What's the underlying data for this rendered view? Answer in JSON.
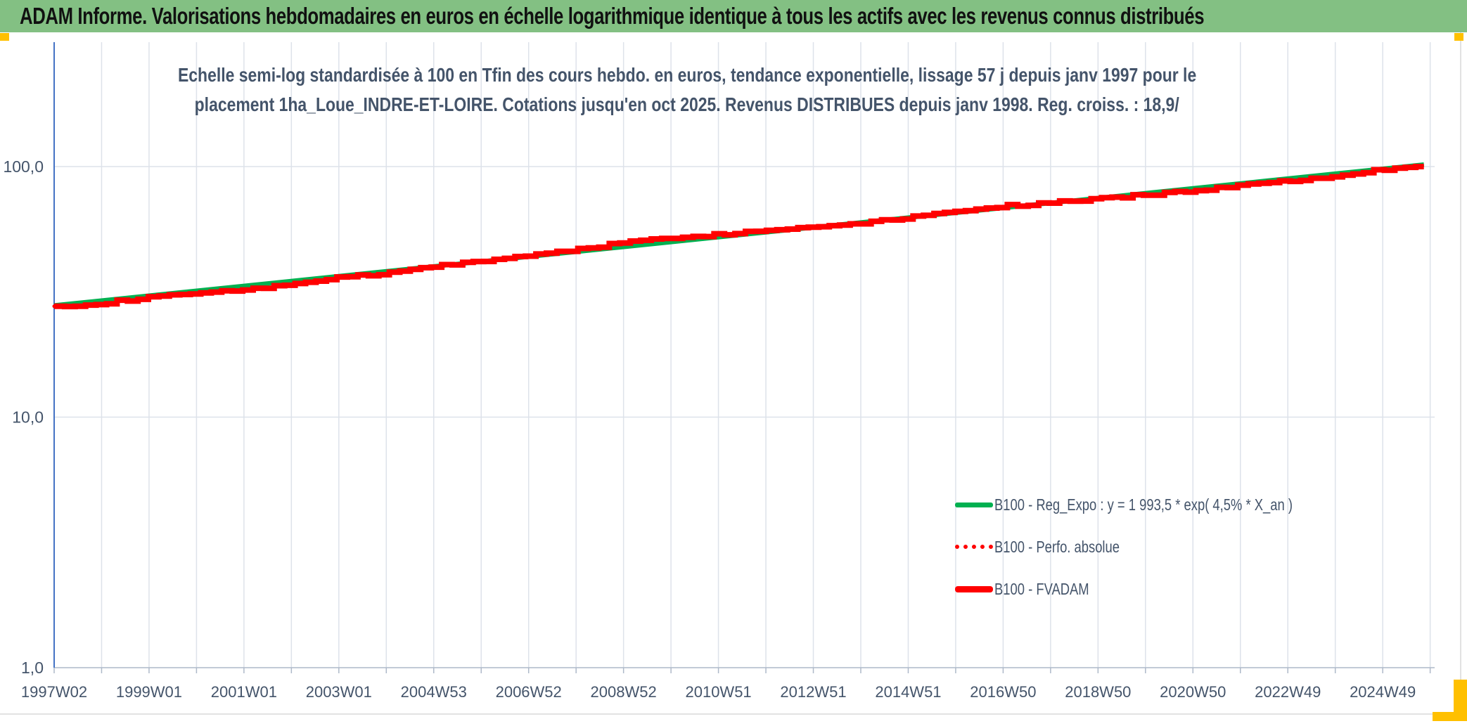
{
  "window": {
    "header_title": "ADAM Informe. Valorisations hebdomadaires en euros en échelle logarithmique identique à tous les actifs avec les revenus connus distribués",
    "header_bg": "#83c083",
    "handle_color": "#FFC000"
  },
  "chart_data": {
    "type": "line",
    "title_lines": [
      "Echelle semi-log standardisée à 100 en Tfin des cours hebdo. en euros, tendance exponentielle, lissage 57 j depuis janv 1997 pour le",
      "placement 1ha_Loue_INDRE-ET-LOIRE. Cotations jusqu'en oct 2025. Revenus DISTRIBUES depuis janv 1998. Reg. croiss. : 18,9/"
    ],
    "y_axis": {
      "scale": "log",
      "ticks": [
        {
          "label": "100,0",
          "value": 100
        },
        {
          "label": "10,0",
          "value": 10
        },
        {
          "label": "1,0",
          "value": 1
        }
      ],
      "range": [
        1,
        300
      ],
      "grid": true
    },
    "x_axis": {
      "start_year": 1997.02,
      "end_year": 2025.79,
      "grid_every_weeks": 52,
      "label_every_weeks": 104,
      "labels": [
        "1997W02",
        "1999W01",
        "2001W01",
        "2003W01",
        "2004W53",
        "2006W52",
        "2008W52",
        "2010W51",
        "2012W51",
        "2014W51",
        "2016W50",
        "2018W50",
        "2020W50",
        "2022W49",
        "2024W49"
      ]
    },
    "legend": [
      {
        "label": "B100 - Reg_Expo : y = 1 993,5 * exp( 4,5% *  X_an )",
        "color": "#00B050",
        "style": "solid"
      },
      {
        "label": "B100 - Perfo. absolue",
        "color": "#FF0000",
        "style": "dotted"
      },
      {
        "label": "B100 - FVADAM",
        "color": "#FF0000",
        "style": "solid-thick"
      }
    ],
    "series": [
      {
        "name": "B100 - Reg_Expo",
        "model": "exponential",
        "color": "#00B050",
        "start_value": 27.9,
        "annual_rate_pct": 4.5
      },
      {
        "name": "B100 - Perfo. absolue",
        "color": "#FF0000",
        "style": "dotted",
        "follows": "B100 - FVADAM"
      },
      {
        "name": "B100 - FVADAM",
        "color": "#FF0000",
        "style": "step",
        "years": [
          1997,
          1998,
          1999,
          2000,
          2001,
          2002,
          2003,
          2004,
          2005,
          2006,
          2007,
          2008,
          2009,
          2010,
          2011,
          2012,
          2013,
          2014,
          2015,
          2016,
          2017,
          2018,
          2019,
          2020,
          2021,
          2022,
          2023,
          2024,
          2025,
          2025.79
        ],
        "values": [
          27.6,
          28.3,
          29.8,
          31.2,
          31.8,
          33.8,
          35.8,
          37.2,
          39.8,
          41.8,
          44.0,
          46.5,
          49.5,
          52.0,
          53.5,
          55.5,
          57.5,
          59.5,
          62.5,
          66.5,
          69.5,
          71.5,
          74.0,
          77.0,
          80.0,
          84.0,
          87.5,
          92.0,
          97.5,
          100.3
        ]
      }
    ]
  }
}
